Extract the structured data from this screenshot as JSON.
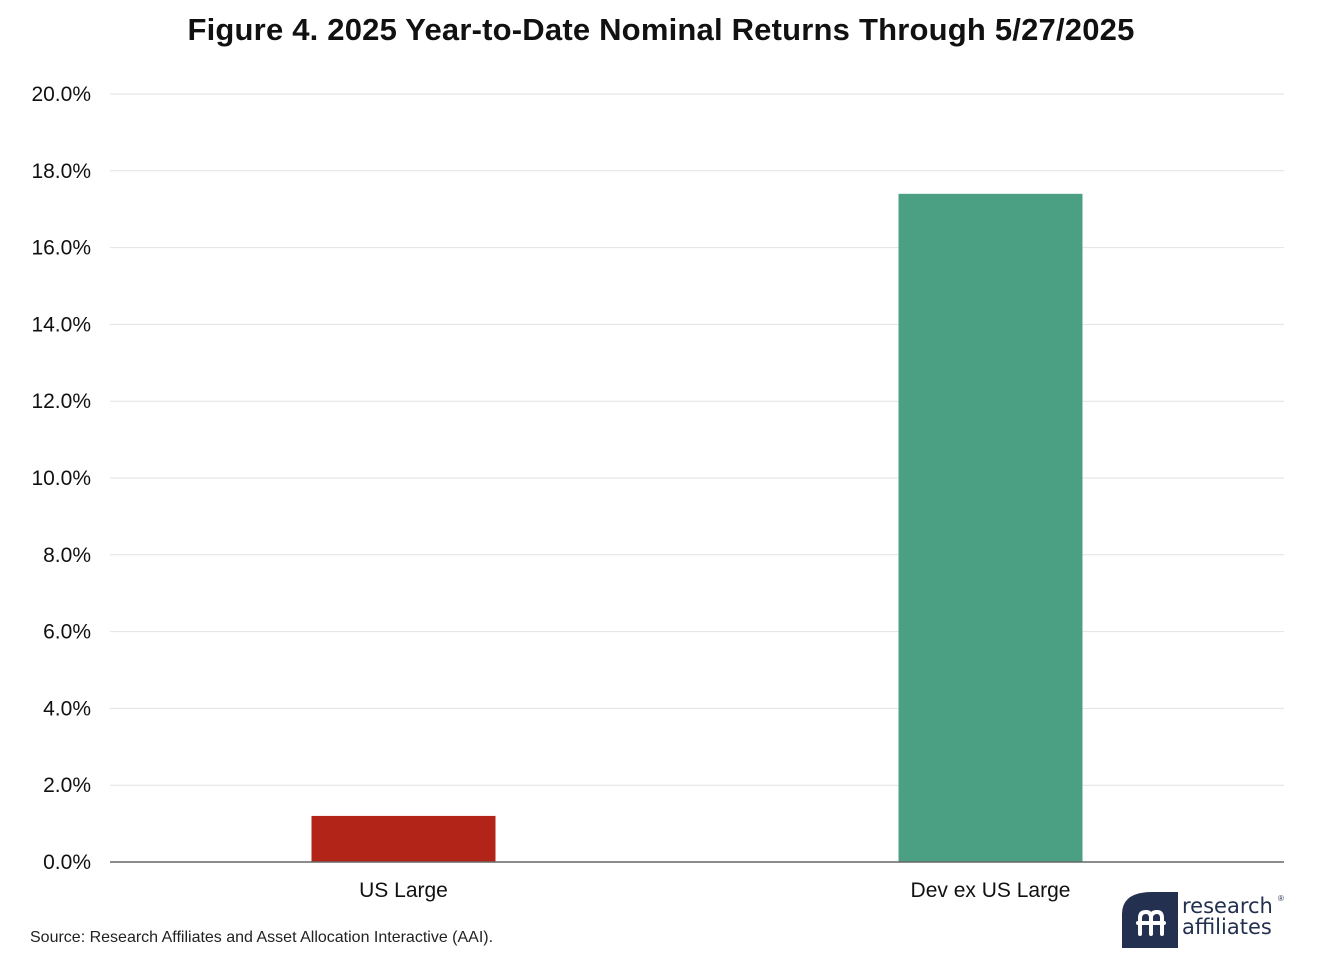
{
  "title": "Figure 4. 2025 Year-to-Date Nominal Returns Through 5/27/2025",
  "chart_data": {
    "type": "bar",
    "categories": [
      "US Large",
      "Dev ex US Large"
    ],
    "values": [
      1.2,
      17.4
    ],
    "colors": [
      "#b22418",
      "#4ba084"
    ],
    "ylim": [
      0,
      20
    ],
    "yticks": [
      0,
      2,
      4,
      6,
      8,
      10,
      12,
      14,
      16,
      18,
      20
    ],
    "ytick_labels": [
      "0.0%",
      "2.0%",
      "4.0%",
      "6.0%",
      "8.0%",
      "10.0%",
      "12.0%",
      "14.0%",
      "16.0%",
      "18.0%",
      "20.0%"
    ],
    "grid": true,
    "gridline_color": "#e2e2e2",
    "axis_color": "#666666"
  },
  "source": "Source: Research Affiliates and Asset Allocation Interactive (AAI).",
  "logo": {
    "line1": "research",
    "line2": "affiliates",
    "mark_color": "#23304f"
  }
}
